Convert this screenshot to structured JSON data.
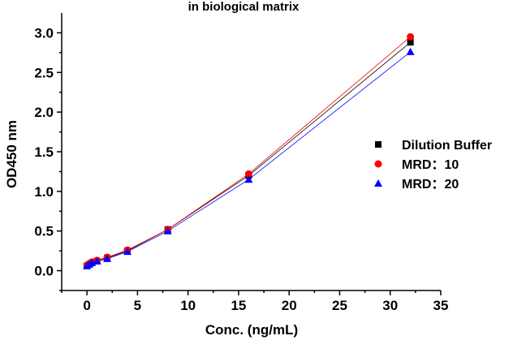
{
  "chart_data": {
    "type": "scatter",
    "title": "in biological matrix",
    "xlabel": "Conc. (ng/mL)",
    "ylabel": "OD450 nm",
    "xlim": [
      -2.5,
      35
    ],
    "ylim": [
      -0.25,
      3.25
    ],
    "x_ticks": [
      "0",
      "5",
      "10",
      "15",
      "20",
      "25",
      "30",
      "35"
    ],
    "y_ticks": [
      "0.0",
      "0.5",
      "1.0",
      "1.5",
      "2.0",
      "2.5",
      "3.0"
    ],
    "grid": false,
    "legend_position": "right",
    "x": [
      0,
      0.25,
      0.5,
      1,
      2,
      4,
      8,
      16,
      32
    ],
    "series": [
      {
        "name": "Dilution Buffer",
        "marker": "square",
        "color": "#000000",
        "values": [
          0.06,
          0.08,
          0.1,
          0.12,
          0.16,
          0.25,
          0.52,
          1.2,
          2.88
        ]
      },
      {
        "name": "MRD：10",
        "marker": "circle",
        "color": "#ff0000",
        "values": [
          0.07,
          0.09,
          0.11,
          0.13,
          0.17,
          0.26,
          0.52,
          1.22,
          2.95
        ]
      },
      {
        "name": "MRD：20",
        "marker": "triangle",
        "color": "#0000ff",
        "values": [
          0.06,
          0.08,
          0.1,
          0.12,
          0.15,
          0.24,
          0.5,
          1.15,
          2.76
        ]
      }
    ]
  }
}
